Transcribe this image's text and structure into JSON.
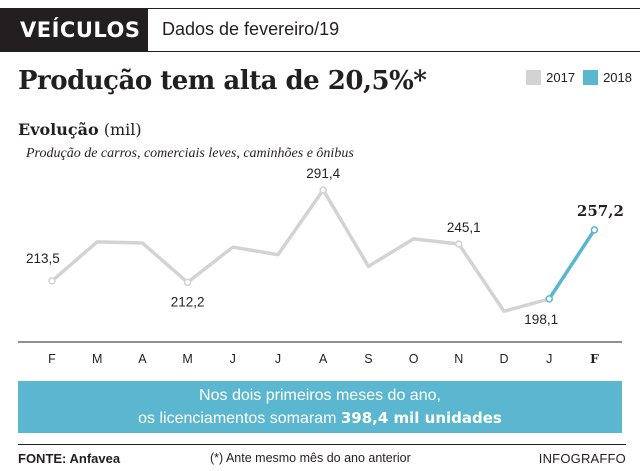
{
  "header": {
    "badge": "VEÍCULOS",
    "subtitle": "Dados de fevereiro/19"
  },
  "headline": "Produção tem alta de  20,5%*",
  "legend": [
    {
      "label": "2017",
      "color": "#d3d3d3"
    },
    {
      "label": "2018",
      "color": "#5bb7cf"
    }
  ],
  "section": {
    "title_bold": "Evolução",
    "title_unit": "(mil)",
    "description": "Produção de carros, comerciais leves, caminhões e ônibus"
  },
  "chart_data": {
    "type": "line",
    "categories": [
      "F",
      "M",
      "A",
      "M",
      "J",
      "J",
      "A",
      "S",
      "O",
      "N",
      "D",
      "J",
      "F"
    ],
    "series": [
      {
        "name": "2017",
        "color": "#d3d3d3",
        "values": [
          213.5,
          247.0,
          246.0,
          212.2,
          242.5,
          236.0,
          291.4,
          226.0,
          249.5,
          245.1,
          187.5,
          198.1,
          null
        ]
      },
      {
        "name": "2018",
        "color": "#5bb7cf",
        "values": [
          null,
          null,
          null,
          null,
          null,
          null,
          null,
          null,
          null,
          null,
          null,
          198.1,
          257.2
        ]
      }
    ],
    "labels": [
      {
        "index": 0,
        "text": "213,5"
      },
      {
        "index": 3,
        "text": "212,2"
      },
      {
        "index": 6,
        "text": "291,4"
      },
      {
        "index": 9,
        "text": "245,1"
      },
      {
        "index": 11,
        "text": "198,1"
      },
      {
        "index": 12,
        "text": "257,2"
      }
    ],
    "highlight_category_index": 12,
    "ylim": [
      180,
      300
    ],
    "grid": false
  },
  "footnote": {
    "line1": "Nos dois primeiros meses do ano,",
    "line2_prefix": "os licenciamentos somaram ",
    "line2_bold": "398,4 mil unidades"
  },
  "footer": {
    "source": "FONTE: Anfavea",
    "note": "(*) Ante mesmo mês do ano anterior",
    "credit": "INFOGRAFFO"
  }
}
